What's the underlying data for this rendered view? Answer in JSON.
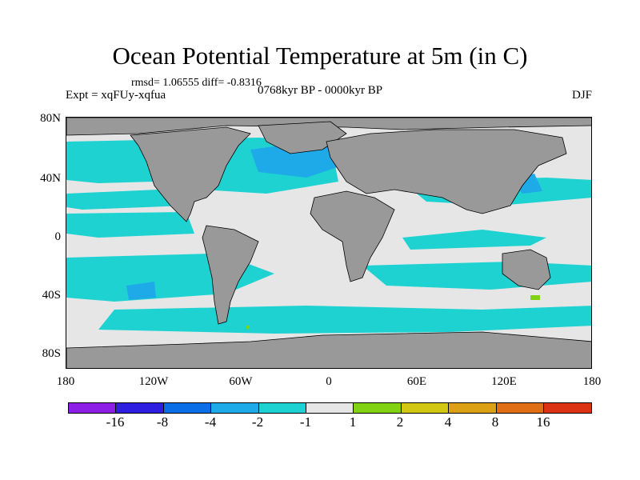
{
  "title": "Ocean Potential Temperature at 5m (in C)",
  "stats": "rmsd= 1.06555 diff= -0.8316",
  "experiment": "Expt = xqFUy-xqfua",
  "period": "0768kyr BP - 0000kyr BP",
  "season": "DJF",
  "y_axis": {
    "ticks": [
      "80N",
      "40N",
      "0",
      "40S",
      "80S"
    ]
  },
  "x_axis": {
    "ticks": [
      "180",
      "120W",
      "60W",
      "0",
      "60E",
      "120E",
      "180"
    ]
  },
  "colorbar": {
    "colors": [
      "#8c1ee6",
      "#2e1ee0",
      "#0a6ee6",
      "#1eaae8",
      "#1ed2d2",
      "#e6e6e6",
      "#82d214",
      "#d2c814",
      "#dca014",
      "#e06e14",
      "#dc3214"
    ],
    "labels": [
      "-16",
      "-8",
      "-4",
      "-2",
      "-1",
      "1",
      "2",
      "4",
      "8",
      "16"
    ]
  },
  "map_colors": {
    "land": "#999999",
    "ocean_neutral": "#e6e6e6",
    "cool": "#1ed2d2",
    "cooler": "#1eaae8",
    "warm": "#82d214",
    "coast": "#000000"
  }
}
